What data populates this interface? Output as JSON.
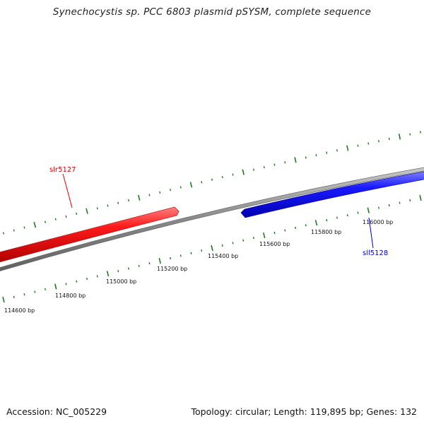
{
  "title": "Synechocystis sp. PCC 6803 plasmid pSYSM, complete sequence",
  "footer": {
    "accession": "Accession: NC_005229",
    "stats": "Topology: circular; Length: 119,895 bp; Genes: 132"
  },
  "colors": {
    "background": "#ffffff",
    "backbone": "#808080",
    "forward_gene": "#ff1a1a",
    "reverse_gene": "#1a1aff",
    "tick": "#1f7a1f"
  },
  "scale_labels": [
    "114600 bp",
    "114800 bp",
    "115000 bp",
    "115200 bp",
    "115400 bp",
    "115600 bp",
    "115800 bp",
    "116000 bp"
  ],
  "genes": [
    {
      "name": "slr5127",
      "strand": "forward",
      "color": "#e00000"
    },
    {
      "name": "sll5128",
      "strand": "reverse",
      "color": "#0000d0"
    }
  ]
}
